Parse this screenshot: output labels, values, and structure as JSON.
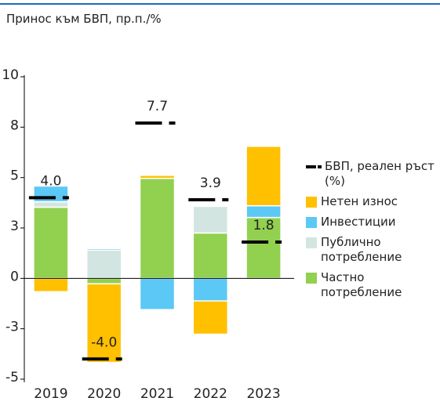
{
  "chart_data": {
    "type": "stacked-bar",
    "title": "Принос към БВП, пр.п./%",
    "categories": [
      "2019",
      "2020",
      "2021",
      "2022",
      "2023"
    ],
    "series": [
      {
        "name": "Нетен износ",
        "color": "#ffc000",
        "values": [
          -0.66,
          -3.9,
          0.15,
          -1.65,
          2.95
        ]
      },
      {
        "name": "Инвестиции",
        "color": "#5bc8f5",
        "values": [
          0.78,
          0.08,
          -1.55,
          -1.12,
          0.58
        ]
      },
      {
        "name": "Публично потребление",
        "color": "#d3e5e1",
        "values": [
          0.27,
          1.4,
          0,
          1.32,
          0
        ]
      },
      {
        "name": "Частно потребление",
        "color": "#92d050",
        "values": [
          3.53,
          -0.27,
          4.96,
          2.25,
          3.02
        ]
      }
    ],
    "gdp": {
      "name": "БВП, реален ръст (%)",
      "color": "#000000",
      "values": [
        4.0,
        -4.0,
        7.7,
        3.9,
        1.8
      ],
      "value_labels": [
        "4.0",
        "-4.0",
        "7.7",
        "3.9",
        "1.8"
      ]
    },
    "ylim": [
      -5,
      10
    ],
    "yticks": [
      10,
      {
        "value": 7.5,
        "label": "8"
      },
      5,
      {
        "value": 2.5,
        "label": "3"
      },
      0,
      {
        "value": -2.5,
        "label": "-3"
      },
      -5
    ]
  }
}
